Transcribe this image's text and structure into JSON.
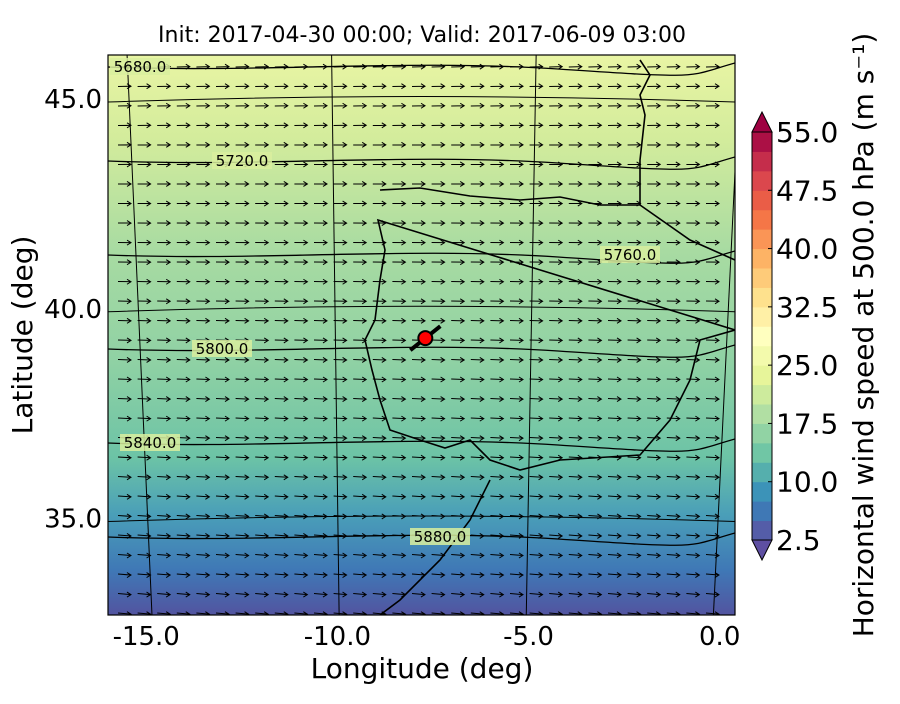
{
  "chart_data": {
    "type": "map",
    "title": "Init: 2017-04-30 00:00; Valid: 2017-06-09 03:00",
    "x_label": "Longitude (deg)",
    "y_label": "Latitude (deg)",
    "xlim": [
      -16,
      0.4
    ],
    "ylim": [
      32.7,
      46.05
    ],
    "xticks": [
      {
        "value": -15,
        "label": "-15.0"
      },
      {
        "value": -10,
        "label": "-10.0"
      },
      {
        "value": -5,
        "label": "-5.0"
      },
      {
        "value": 0,
        "label": "0.0"
      }
    ],
    "yticks": [
      {
        "value": 35,
        "label": "35.0"
      },
      {
        "value": 40,
        "label": "40.0"
      },
      {
        "value": 45,
        "label": "45.0"
      }
    ],
    "contours": [
      {
        "value": 5680,
        "label": "5680.0"
      },
      {
        "value": 5720,
        "label": "5720.0"
      },
      {
        "value": 5760,
        "label": "5760.0"
      },
      {
        "value": 5800,
        "label": "5800.0"
      },
      {
        "value": 5840,
        "label": "5840.0"
      },
      {
        "value": 5880,
        "label": "5880.0"
      }
    ],
    "marker": {
      "lon": -7.7,
      "lat": 39.3,
      "color": "#ff0000"
    },
    "colorbar": {
      "label": "Horizontal wind speed at 500.0 hPa (m s⁻¹)",
      "lim": [
        2.5,
        55
      ],
      "step": 2.5,
      "ticks": [
        {
          "value": 2.5,
          "label": "2.5"
        },
        {
          "value": 10,
          "label": "10.0"
        },
        {
          "value": 17.5,
          "label": "17.5"
        },
        {
          "value": 25,
          "label": "25.0"
        },
        {
          "value": 32.5,
          "label": "32.5"
        },
        {
          "value": 40,
          "label": "40.0"
        },
        {
          "value": 47.5,
          "label": "47.5"
        },
        {
          "value": 55,
          "label": "55.0"
        }
      ],
      "colormap": [
        "#5e4fa2",
        "#3288bd",
        "#66c2a5",
        "#abdda4",
        "#e6f598",
        "#ffffbf",
        "#fee08b",
        "#fdae61",
        "#f46d43",
        "#d53e4f",
        "#9e0142"
      ]
    }
  }
}
